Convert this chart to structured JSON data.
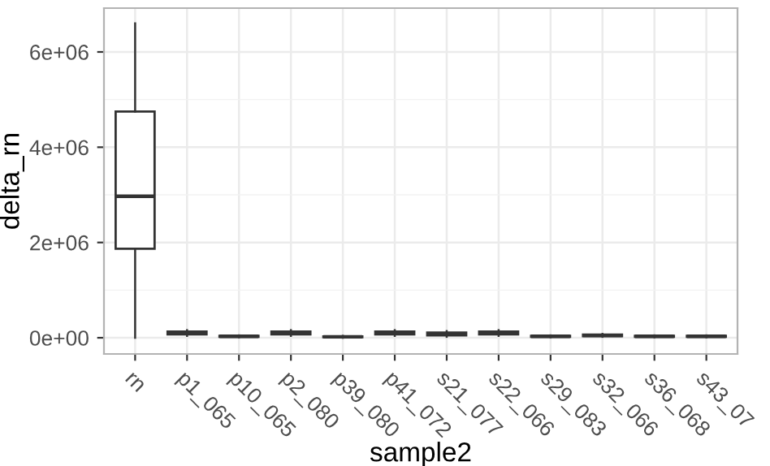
{
  "chart_data": {
    "type": "box",
    "xlabel": "sample2",
    "ylabel": "delta_rn",
    "categories": [
      "rn",
      "p1_065",
      "p10_065",
      "p2_080",
      "p39_080",
      "p41_072",
      "s21_077",
      "s22_066",
      "s29_083",
      "s32_066",
      "s36_068",
      "s43_07"
    ],
    "boxes": [
      {
        "low": 0,
        "q1": 1870000,
        "median": 2970000,
        "q3": 4750000,
        "high": 6600000
      },
      {
        "low": 40000,
        "q1": 70000,
        "median": 100000,
        "q3": 130000,
        "high": 160000
      },
      {
        "low": 10000,
        "q1": 20000,
        "median": 30000,
        "q3": 40000,
        "high": 50000
      },
      {
        "low": 40000,
        "q1": 70000,
        "median": 100000,
        "q3": 130000,
        "high": 160000
      },
      {
        "low": 0,
        "q1": 10000,
        "median": 20000,
        "q3": 30000,
        "high": 40000
      },
      {
        "low": 40000,
        "q1": 70000,
        "median": 100000,
        "q3": 130000,
        "high": 160000
      },
      {
        "low": 20000,
        "q1": 50000,
        "median": 80000,
        "q3": 110000,
        "high": 140000
      },
      {
        "low": 40000,
        "q1": 70000,
        "median": 100000,
        "q3": 130000,
        "high": 160000
      },
      {
        "low": 10000,
        "q1": 20000,
        "median": 30000,
        "q3": 40000,
        "high": 50000
      },
      {
        "low": 20000,
        "q1": 35000,
        "median": 50000,
        "q3": 65000,
        "high": 80000
      },
      {
        "low": 10000,
        "q1": 20000,
        "median": 30000,
        "q3": 40000,
        "high": 50000
      },
      {
        "low": 10000,
        "q1": 20000,
        "median": 30000,
        "q3": 40000,
        "high": 50000
      }
    ],
    "ylim": [
      -340000,
      6920000
    ],
    "yticks": [
      {
        "value": 0,
        "label": "0e+00"
      },
      {
        "value": 2000000,
        "label": "2e+06"
      },
      {
        "value": 4000000,
        "label": "4e+06"
      },
      {
        "value": 6000000,
        "label": "6e+06"
      }
    ],
    "grid": true,
    "color": "#333333"
  }
}
